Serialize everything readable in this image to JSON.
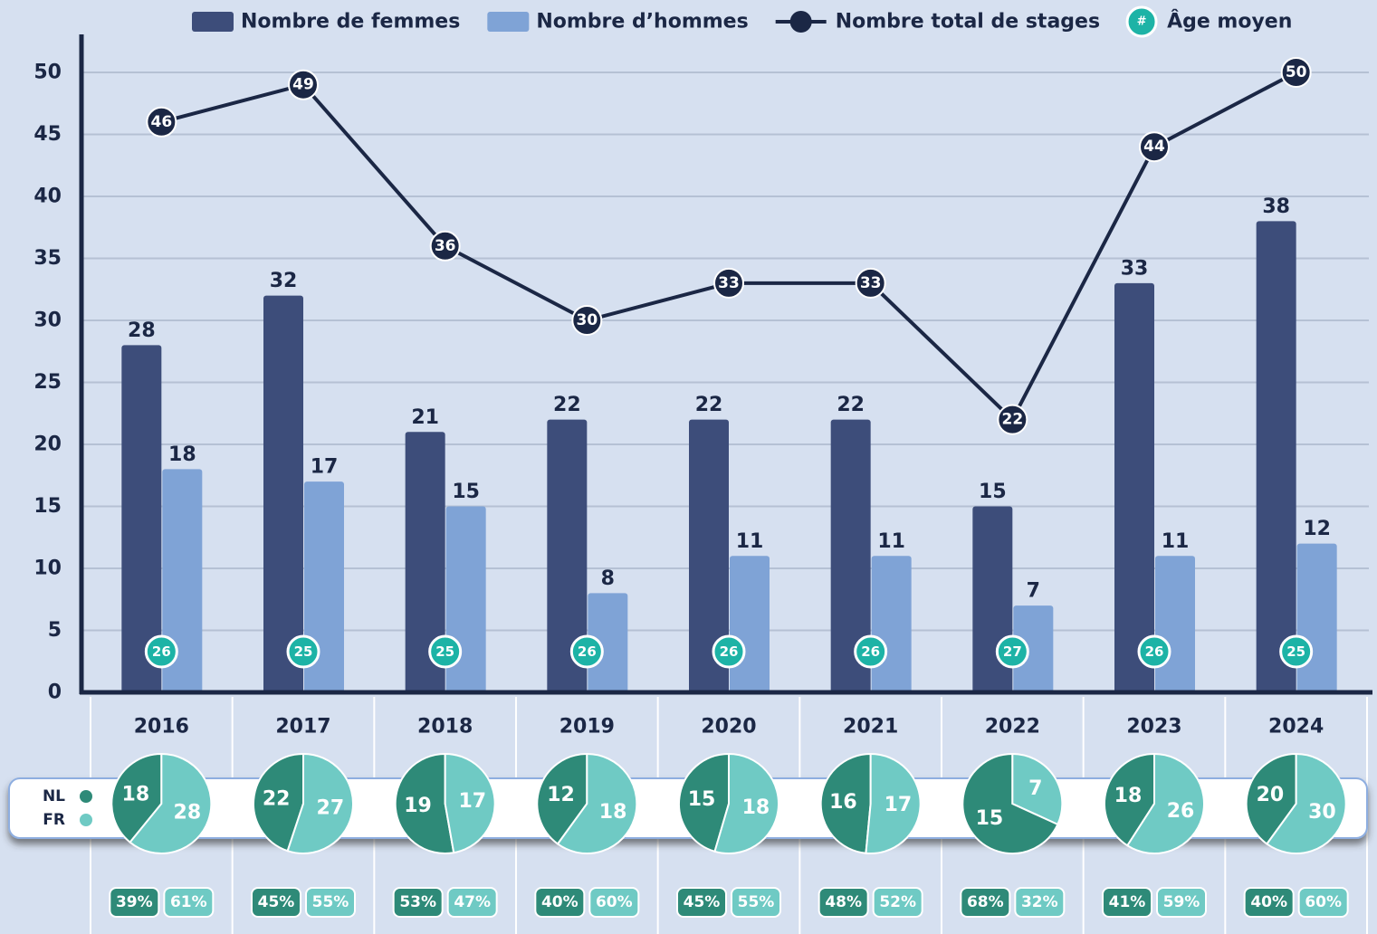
{
  "chart_data": [
    {
      "type": "bar",
      "categories": [
        "2016",
        "2017",
        "2018",
        "2019",
        "2020",
        "2021",
        "2022",
        "2023",
        "2024"
      ],
      "series": [
        {
          "name": "Nombre de femmes",
          "type": "bar",
          "color": "#3d4d7a",
          "values": [
            28,
            32,
            21,
            22,
            22,
            22,
            15,
            33,
            38
          ]
        },
        {
          "name": "Nombre d’hommes",
          "type": "bar",
          "color": "#7fa3d6",
          "values": [
            18,
            17,
            15,
            8,
            11,
            11,
            7,
            11,
            12
          ]
        },
        {
          "name": "Nombre total de stages",
          "type": "line",
          "color": "#1b2745",
          "values": [
            46,
            49,
            36,
            30,
            33,
            33,
            22,
            44,
            50
          ]
        },
        {
          "name": "Âge moyen",
          "type": "badge",
          "symbol": "#",
          "color": "#1db3a6",
          "values": [
            26,
            25,
            25,
            26,
            26,
            26,
            27,
            26,
            25
          ]
        }
      ],
      "ylim": [
        0,
        50
      ],
      "yticks": [
        0,
        5,
        10,
        15,
        20,
        25,
        30,
        35,
        40,
        45,
        50
      ],
      "grid": true
    },
    {
      "type": "pie",
      "series": [
        {
          "name": "NL",
          "color": "#2e8a78",
          "values": [
            18,
            22,
            19,
            12,
            15,
            16,
            15,
            18,
            20
          ],
          "shares": [
            39,
            45,
            53,
            40,
            45,
            48,
            68,
            41,
            40
          ],
          "share_labels": [
            "39%",
            "45%",
            "53%",
            "40%",
            "45%",
            "48%",
            "68%",
            "41%",
            "40%"
          ]
        },
        {
          "name": "FR",
          "color": "#6fcac4",
          "values": [
            28,
            27,
            17,
            18,
            18,
            17,
            7,
            26,
            30
          ],
          "shares": [
            61,
            55,
            47,
            60,
            55,
            52,
            32,
            59,
            60
          ],
          "share_labels": [
            "61%",
            "55%",
            "47%",
            "60%",
            "55%",
            "52%",
            "32%",
            "59%",
            "60%"
          ]
        }
      ]
    }
  ]
}
